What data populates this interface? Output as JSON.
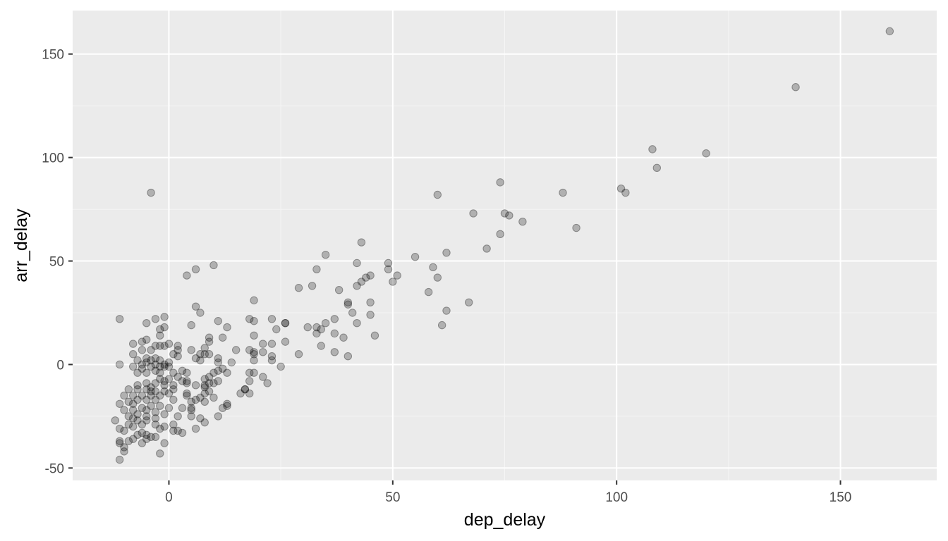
{
  "chart_data": {
    "type": "scatter",
    "title": "",
    "xlabel": "dep_delay",
    "ylabel": "arr_delay",
    "xlim": [
      -21.5,
      171.5
    ],
    "ylim": [
      -56,
      171
    ],
    "x_ticks": [
      0,
      50,
      100,
      150
    ],
    "x_tick_labels": [
      "0",
      "50",
      "100",
      "150"
    ],
    "y_ticks": [
      -50,
      0,
      50,
      100,
      150
    ],
    "y_tick_labels": [
      "-50",
      "0",
      "50",
      "100",
      "150"
    ],
    "grid": true,
    "legend": "none",
    "colors": {
      "panel_background": "#ebebeb",
      "grid_major": "#ffffff",
      "grid_minor": "#f5f5f5",
      "point": "#000000",
      "point_alpha": 0.25
    },
    "points": [
      [
        161,
        161
      ],
      [
        140,
        134
      ],
      [
        120,
        102
      ],
      [
        108,
        104
      ],
      [
        109,
        95
      ],
      [
        101,
        85
      ],
      [
        102,
        83
      ],
      [
        88,
        83
      ],
      [
        91,
        66
      ],
      [
        74,
        88
      ],
      [
        75,
        73
      ],
      [
        76,
        72
      ],
      [
        79,
        69
      ],
      [
        74,
        63
      ],
      [
        68,
        73
      ],
      [
        71,
        56
      ],
      [
        67,
        30
      ],
      [
        60,
        82
      ],
      [
        62,
        54
      ],
      [
        59,
        47
      ],
      [
        60,
        42
      ],
      [
        58,
        35
      ],
      [
        62,
        26
      ],
      [
        61,
        19
      ],
      [
        55,
        52
      ],
      [
        49,
        49
      ],
      [
        49,
        46
      ],
      [
        51,
        43
      ],
      [
        50,
        40
      ],
      [
        46,
        14
      ],
      [
        43,
        59
      ],
      [
        42,
        49
      ],
      [
        45,
        43
      ],
      [
        44,
        42
      ],
      [
        43,
        40
      ],
      [
        42,
        38
      ],
      [
        45,
        30
      ],
      [
        45,
        24
      ],
      [
        42,
        20
      ],
      [
        41,
        25
      ],
      [
        40,
        30
      ],
      [
        40,
        29
      ],
      [
        40,
        4
      ],
      [
        35,
        53
      ],
      [
        33,
        46
      ],
      [
        38,
        36
      ],
      [
        32,
        38
      ],
      [
        29,
        37
      ],
      [
        37,
        22
      ],
      [
        35,
        20
      ],
      [
        37,
        15
      ],
      [
        39,
        13
      ],
      [
        37,
        6
      ],
      [
        34,
        17
      ],
      [
        33,
        15
      ],
      [
        33,
        18
      ],
      [
        34,
        9
      ],
      [
        31,
        18
      ],
      [
        29,
        5
      ],
      [
        26,
        20
      ],
      [
        26,
        20
      ],
      [
        26,
        11
      ],
      [
        25,
        -1
      ],
      [
        24,
        17
      ],
      [
        23,
        22
      ],
      [
        23,
        10
      ],
      [
        23,
        4
      ],
      [
        23,
        2
      ],
      [
        21,
        10
      ],
      [
        21,
        6
      ],
      [
        21,
        -6
      ],
      [
        22,
        -9
      ],
      [
        19,
        31
      ],
      [
        18,
        22
      ],
      [
        19,
        21
      ],
      [
        19,
        14
      ],
      [
        18,
        7
      ],
      [
        19,
        6
      ],
      [
        19,
        5
      ],
      [
        19,
        2
      ],
      [
        19,
        -4
      ],
      [
        18,
        -4
      ],
      [
        18,
        -8
      ],
      [
        17,
        -12
      ],
      [
        17,
        -12
      ],
      [
        18,
        -14
      ],
      [
        16,
        -14
      ],
      [
        15,
        7
      ],
      [
        14,
        1
      ],
      [
        13,
        18
      ],
      [
        12,
        13
      ],
      [
        11,
        21
      ],
      [
        11,
        3
      ],
      [
        11,
        1
      ],
      [
        12,
        -2
      ],
      [
        11,
        -3
      ],
      [
        13,
        -4
      ],
      [
        11,
        -8
      ],
      [
        13,
        -19
      ],
      [
        13,
        -20
      ],
      [
        12,
        -21
      ],
      [
        11,
        -25
      ],
      [
        10,
        48
      ],
      [
        6,
        46
      ],
      [
        4,
        43
      ],
      [
        6,
        28
      ],
      [
        7,
        25
      ],
      [
        5,
        19
      ],
      [
        9,
        13
      ],
      [
        9,
        11
      ],
      [
        8,
        8
      ],
      [
        7,
        5
      ],
      [
        8,
        5
      ],
      [
        9,
        5
      ],
      [
        5,
        7
      ],
      [
        6,
        3
      ],
      [
        7,
        2
      ],
      [
        10,
        -4
      ],
      [
        9,
        -6
      ],
      [
        8,
        -7
      ],
      [
        9,
        -9
      ],
      [
        10,
        -9
      ],
      [
        8,
        -10
      ],
      [
        8,
        -11
      ],
      [
        9,
        -13
      ],
      [
        8,
        -14
      ],
      [
        10,
        -16
      ],
      [
        7,
        -16
      ],
      [
        8,
        -18
      ],
      [
        6,
        -17
      ],
      [
        5,
        -18
      ],
      [
        5,
        -21
      ],
      [
        5,
        -22
      ],
      [
        5,
        -25
      ],
      [
        7,
        -26
      ],
      [
        6,
        -31
      ],
      [
        -4,
        83
      ],
      [
        -11,
        22
      ],
      [
        -1,
        23
      ],
      [
        -3,
        22
      ],
      [
        -5,
        20
      ],
      [
        -2,
        17
      ],
      [
        -1,
        18
      ],
      [
        -2,
        14
      ],
      [
        -5,
        12
      ],
      [
        -6,
        11
      ],
      [
        -8,
        10
      ],
      [
        -2,
        9
      ],
      [
        -3,
        9
      ],
      [
        0,
        10
      ],
      [
        -1,
        9
      ],
      [
        -6,
        7
      ],
      [
        -4,
        7
      ],
      [
        -8,
        5
      ],
      [
        2,
        9
      ],
      [
        2,
        7
      ],
      [
        1,
        5
      ],
      [
        2,
        4
      ],
      [
        -5,
        3
      ],
      [
        -3,
        3
      ],
      [
        -7,
        2
      ],
      [
        -4,
        2
      ],
      [
        -2,
        2
      ],
      [
        -5,
        1
      ],
      [
        -6,
        0
      ],
      [
        -3,
        0
      ],
      [
        -1,
        0
      ],
      [
        0,
        1
      ],
      [
        -11,
        0
      ],
      [
        -8,
        -1
      ],
      [
        -4,
        -1
      ],
      [
        -2,
        -1
      ],
      [
        0,
        -1
      ],
      [
        -1,
        -1
      ],
      [
        -6,
        -2
      ],
      [
        -3,
        -3
      ],
      [
        -5,
        -4
      ],
      [
        -7,
        -4
      ],
      [
        -2,
        -4
      ],
      [
        1,
        -4
      ],
      [
        3,
        -3
      ],
      [
        4,
        -4
      ],
      [
        2,
        -6
      ],
      [
        0,
        -7
      ],
      [
        -1,
        -8
      ],
      [
        -3,
        -9
      ],
      [
        -5,
        -9
      ],
      [
        -7,
        -10
      ],
      [
        -1,
        -10
      ],
      [
        1,
        -10
      ],
      [
        4,
        -8
      ],
      [
        3,
        -8
      ],
      [
        4,
        -9
      ],
      [
        -9,
        -12
      ],
      [
        -7,
        -12
      ],
      [
        -5,
        -12
      ],
      [
        -3,
        -13
      ],
      [
        -1,
        -13
      ],
      [
        0,
        -14
      ],
      [
        -2,
        -15
      ],
      [
        -4,
        -15
      ],
      [
        -6,
        -15
      ],
      [
        -8,
        -15
      ],
      [
        -10,
        -15
      ],
      [
        4,
        -14
      ],
      [
        4,
        -15
      ],
      [
        -3,
        -17
      ],
      [
        -5,
        -17
      ],
      [
        -7,
        -17
      ],
      [
        1,
        -17
      ],
      [
        -9,
        -18
      ],
      [
        -11,
        -19
      ],
      [
        -8,
        -19
      ],
      [
        -4,
        -20
      ],
      [
        -2,
        -20
      ],
      [
        -6,
        -21
      ],
      [
        0,
        -21
      ],
      [
        -8,
        -22
      ],
      [
        -10,
        -22
      ],
      [
        -5,
        -22
      ],
      [
        -3,
        -23
      ],
      [
        -7,
        -24
      ],
      [
        -1,
        -24
      ],
      [
        -9,
        -25
      ],
      [
        -5,
        -25
      ],
      [
        -3,
        -26
      ],
      [
        -8,
        -26
      ],
      [
        -7,
        -27
      ],
      [
        -5,
        -27
      ],
      [
        -12,
        -27
      ],
      [
        -9,
        -29
      ],
      [
        -6,
        -29
      ],
      [
        -3,
        -29
      ],
      [
        -1,
        -30
      ],
      [
        -8,
        -30
      ],
      [
        -11,
        -31
      ],
      [
        -10,
        -32
      ],
      [
        -2,
        -31
      ],
      [
        1,
        -29
      ],
      [
        2,
        -32
      ],
      [
        1,
        -32
      ],
      [
        3,
        -33
      ],
      [
        -6,
        -33
      ],
      [
        -7,
        -34
      ],
      [
        -4,
        -35
      ],
      [
        -5,
        -36
      ],
      [
        -8,
        -36
      ],
      [
        -9,
        -37
      ],
      [
        -11,
        -37
      ],
      [
        -11,
        -38
      ],
      [
        -1,
        -38
      ],
      [
        -10,
        -40
      ],
      [
        -10,
        -42
      ],
      [
        -2,
        -43
      ],
      [
        -11,
        -46
      ],
      [
        -5,
        -34
      ],
      [
        -3,
        -35
      ],
      [
        -6,
        -38
      ],
      [
        2,
        -25
      ],
      [
        -4,
        -13
      ],
      [
        1,
        -12
      ],
      [
        -2,
        -7
      ],
      [
        -4,
        -11
      ],
      [
        3,
        -21
      ],
      [
        6,
        -10
      ],
      [
        8,
        -28
      ]
    ]
  }
}
